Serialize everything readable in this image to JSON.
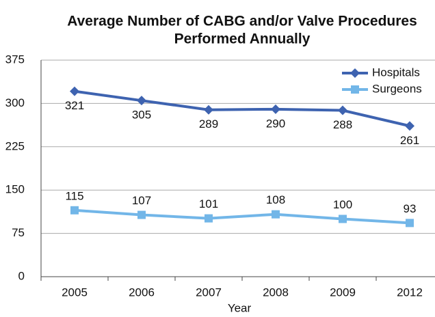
{
  "chart_data": {
    "type": "line",
    "title": [
      "Average Number of CABG and/or Valve Procedures",
      "Performed Annually"
    ],
    "x_label": "Year",
    "categories": [
      "2005",
      "2006",
      "2007",
      "2008",
      "2009",
      "2012"
    ],
    "series": [
      {
        "name": "Hospitals",
        "color": "#3e63b0",
        "values": [
          321,
          305,
          289,
          290,
          288,
          261
        ]
      },
      {
        "name": "Surgeons",
        "color": "#72b6e8",
        "values": [
          115,
          107,
          101,
          108,
          100,
          93
        ]
      }
    ],
    "ylim": [
      0,
      375
    ],
    "yticks": [
      0,
      75,
      150,
      225,
      300,
      375
    ],
    "grid": true,
    "legend": "top-right"
  }
}
